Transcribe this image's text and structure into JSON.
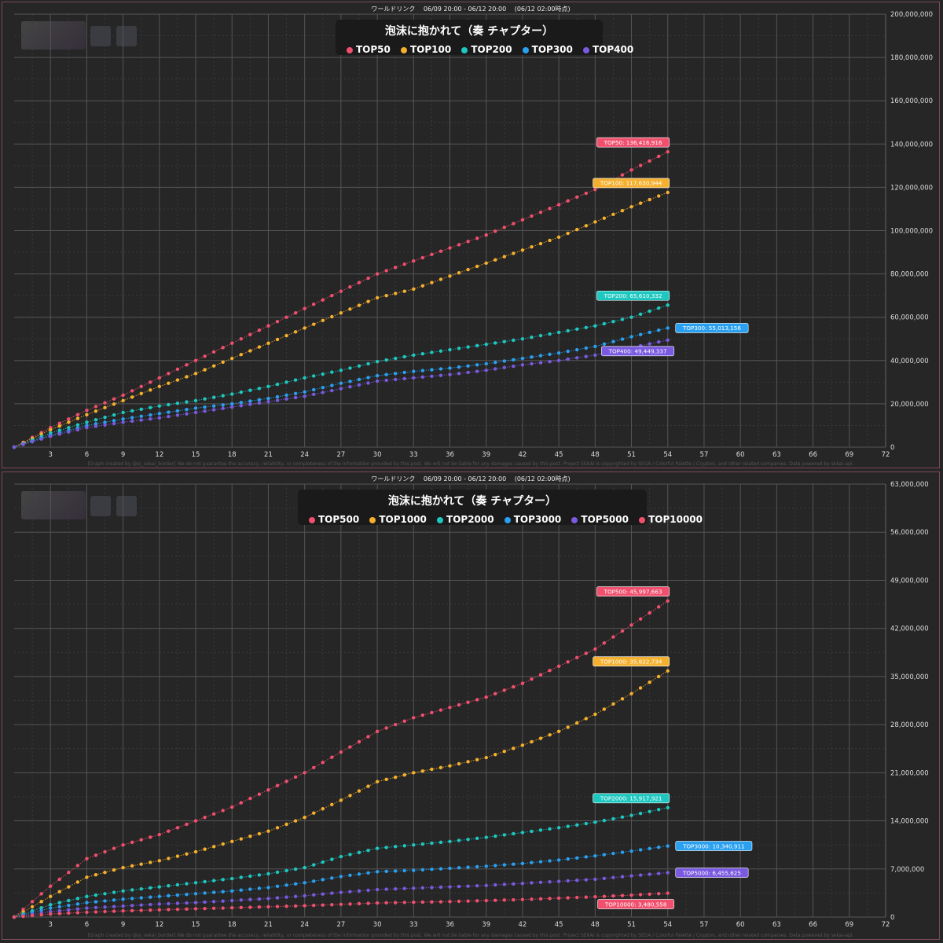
{
  "header_text": "ワールドリンク　 06/09 20:00 - 06/12 20:00　 (06/12 02:00時点)",
  "credit_text": "[Graph created by @pj_sekai_border]  We do not guarantee the accuracy, reliability, or completeness of the information provided by this post. We will not be liable for any damages caused by this post. Project SEKAI is copyrighted by SEGA / Colorful Palette / Crypton, and other related companies. Data powered by sekai-api.",
  "chart_data": [
    {
      "type": "line",
      "title": "泡沫に抱かれて（奏 チャプター）",
      "xlim": [
        0,
        72
      ],
      "x_ticks": [
        3,
        6,
        9,
        12,
        15,
        18,
        21,
        24,
        27,
        30,
        33,
        36,
        39,
        42,
        45,
        48,
        51,
        54,
        57,
        60,
        63,
        66,
        69,
        72
      ],
      "ylim": [
        0,
        200000000
      ],
      "y_ticks": [
        0,
        20000000,
        40000000,
        60000000,
        80000000,
        100000000,
        120000000,
        140000000,
        160000000,
        180000000,
        200000000
      ],
      "y_tick_labels": [
        "0",
        "20,000,000",
        "40,000,000",
        "60,000,000",
        "80,000,000",
        "100,000,000",
        "120,000,000",
        "140,000,000",
        "160,000,000",
        "180,000,000",
        "200,000,000"
      ],
      "grid": true,
      "legend_position": "top-center",
      "series": [
        {
          "name": "TOP50",
          "color": "#f0506e",
          "label": "TOP50: 136,416,916",
          "label_side": "above",
          "x": [
            0,
            3,
            6,
            9,
            12,
            15,
            18,
            21,
            24,
            27,
            30,
            33,
            36,
            39,
            42,
            45,
            48,
            51,
            54
          ],
          "y": [
            0,
            9000000,
            17000000,
            24000000,
            32000000,
            40000000,
            48000000,
            56000000,
            64000000,
            72000000,
            80000000,
            86000000,
            92000000,
            98000000,
            105000000,
            112000000,
            119000000,
            128000000,
            136416916
          ]
        },
        {
          "name": "TOP100",
          "color": "#f5b02e",
          "label": "TOP100: 117,630,944",
          "label_side": "above",
          "x": [
            0,
            3,
            6,
            9,
            12,
            15,
            18,
            21,
            24,
            27,
            30,
            33,
            36,
            39,
            42,
            45,
            48,
            51,
            54
          ],
          "y": [
            0,
            8000000,
            15000000,
            21500000,
            28000000,
            34000000,
            41000000,
            48000000,
            55000000,
            62000000,
            69000000,
            73000000,
            79000000,
            85000000,
            91000000,
            97000000,
            104000000,
            111000000,
            117630944
          ]
        },
        {
          "name": "TOP200",
          "color": "#1ec8c0",
          "label": "TOP200: 65,610,332",
          "label_side": "above",
          "x": [
            0,
            3,
            6,
            9,
            12,
            15,
            18,
            21,
            24,
            27,
            30,
            33,
            36,
            39,
            42,
            45,
            48,
            51,
            54
          ],
          "y": [
            0,
            6500000,
            11500000,
            16000000,
            19000000,
            21500000,
            24500000,
            28000000,
            32000000,
            35500000,
            39500000,
            42500000,
            45000000,
            47500000,
            50000000,
            53000000,
            56000000,
            60000000,
            65610332
          ]
        },
        {
          "name": "TOP300",
          "color": "#2aa0f0",
          "label": "TOP300: 55,013,156",
          "label_side": "right",
          "x": [
            0,
            3,
            6,
            9,
            12,
            15,
            18,
            21,
            24,
            27,
            30,
            33,
            36,
            39,
            42,
            45,
            48,
            51,
            54
          ],
          "y": [
            0,
            5500000,
            10000000,
            13000000,
            15500000,
            18000000,
            20000000,
            22500000,
            25500000,
            29500000,
            33000000,
            35000000,
            36500000,
            38500000,
            41000000,
            43500000,
            46500000,
            51000000,
            55013156
          ]
        },
        {
          "name": "TOP400",
          "color": "#7a5ae0",
          "label": "TOP400: 49,449,337",
          "label_side": "below",
          "x": [
            0,
            3,
            6,
            9,
            12,
            15,
            18,
            21,
            24,
            27,
            30,
            33,
            36,
            39,
            42,
            45,
            48,
            51,
            54
          ],
          "y": [
            0,
            5000000,
            9000000,
            11500000,
            13500000,
            16000000,
            18500000,
            21000000,
            23500000,
            27000000,
            30500000,
            32000000,
            33500000,
            35500000,
            38000000,
            40000000,
            42500000,
            46000000,
            49449337
          ]
        }
      ]
    },
    {
      "type": "line",
      "title": "泡沫に抱かれて（奏 チャプター）",
      "xlim": [
        0,
        72
      ],
      "x_ticks": [
        3,
        6,
        9,
        12,
        15,
        18,
        21,
        24,
        27,
        30,
        33,
        36,
        39,
        42,
        45,
        48,
        51,
        54,
        57,
        60,
        63,
        66,
        69,
        72
      ],
      "ylim": [
        0,
        63000000
      ],
      "y_ticks": [
        0,
        7000000,
        14000000,
        21000000,
        28000000,
        35000000,
        42000000,
        49000000,
        56000000,
        63000000
      ],
      "y_tick_labels": [
        "0",
        "7,000,000",
        "14,000,000",
        "21,000,000",
        "28,000,000",
        "35,000,000",
        "42,000,000",
        "49,000,000",
        "56,000,000",
        "63,000,000"
      ],
      "grid": true,
      "legend_position": "top-center",
      "series": [
        {
          "name": "TOP500",
          "color": "#f0506e",
          "label": "TOP500: 45,997,663",
          "label_side": "above",
          "x": [
            0,
            3,
            6,
            9,
            12,
            15,
            18,
            21,
            24,
            27,
            30,
            33,
            36,
            39,
            42,
            45,
            48,
            51,
            54
          ],
          "y": [
            0,
            4500000,
            8500000,
            10500000,
            12000000,
            14000000,
            16000000,
            18500000,
            21000000,
            24000000,
            27000000,
            29000000,
            30500000,
            32000000,
            34000000,
            36500000,
            39000000,
            42500000,
            45997663
          ]
        },
        {
          "name": "TOP1000",
          "color": "#f5b02e",
          "label": "TOP1000: 35,822,734",
          "label_side": "above",
          "x": [
            0,
            3,
            6,
            9,
            12,
            15,
            18,
            21,
            24,
            27,
            30,
            33,
            36,
            39,
            42,
            45,
            48,
            51,
            54
          ],
          "y": [
            0,
            3000000,
            5800000,
            7200000,
            8200000,
            9500000,
            11000000,
            12500000,
            14500000,
            17000000,
            19700000,
            21000000,
            22000000,
            23200000,
            25000000,
            27000000,
            29500000,
            32500000,
            35822734
          ]
        },
        {
          "name": "TOP2000",
          "color": "#1ec8c0",
          "label": "TOP2000: 15,917,921",
          "label_side": "above",
          "x": [
            0,
            3,
            6,
            9,
            12,
            15,
            18,
            21,
            24,
            27,
            30,
            33,
            36,
            39,
            42,
            45,
            48,
            51,
            54
          ],
          "y": [
            0,
            1800000,
            3000000,
            3800000,
            4400000,
            5000000,
            5600000,
            6300000,
            7200000,
            8800000,
            10000000,
            10500000,
            11000000,
            11600000,
            12300000,
            13000000,
            13800000,
            14800000,
            15917921
          ]
        },
        {
          "name": "TOP3000",
          "color": "#2aa0f0",
          "label": "TOP3000: 10,340,911",
          "label_side": "right",
          "x": [
            0,
            3,
            6,
            9,
            12,
            15,
            18,
            21,
            24,
            27,
            30,
            33,
            36,
            39,
            42,
            45,
            48,
            51,
            54
          ],
          "y": [
            0,
            1300000,
            2100000,
            2600000,
            3000000,
            3400000,
            3800000,
            4300000,
            5000000,
            5900000,
            6600000,
            6800000,
            7100000,
            7400000,
            7800000,
            8300000,
            8900000,
            9600000,
            10340911
          ]
        },
        {
          "name": "TOP5000",
          "color": "#7a5ae0",
          "label": "TOP5000: 6,455,625",
          "label_side": "right",
          "x": [
            0,
            3,
            6,
            9,
            12,
            15,
            18,
            21,
            24,
            27,
            30,
            33,
            36,
            39,
            42,
            45,
            48,
            51,
            54
          ],
          "y": [
            0,
            800000,
            1300000,
            1600000,
            1900000,
            2100000,
            2400000,
            2700000,
            3100000,
            3600000,
            4000000,
            4200000,
            4400000,
            4600000,
            4900000,
            5200000,
            5500000,
            6000000,
            6455625
          ]
        },
        {
          "name": "TOP10000",
          "color": "#f0506e",
          "label": "TOP10000: 3,480,558",
          "label_side": "below",
          "x": [
            0,
            3,
            6,
            9,
            12,
            15,
            18,
            21,
            24,
            27,
            30,
            33,
            36,
            39,
            42,
            45,
            48,
            51,
            54
          ],
          "y": [
            0,
            450000,
            700000,
            900000,
            1050000,
            1200000,
            1350000,
            1500000,
            1650000,
            1850000,
            2050000,
            2150000,
            2250000,
            2400000,
            2550000,
            2750000,
            2950000,
            3200000,
            3480558
          ]
        }
      ]
    }
  ]
}
